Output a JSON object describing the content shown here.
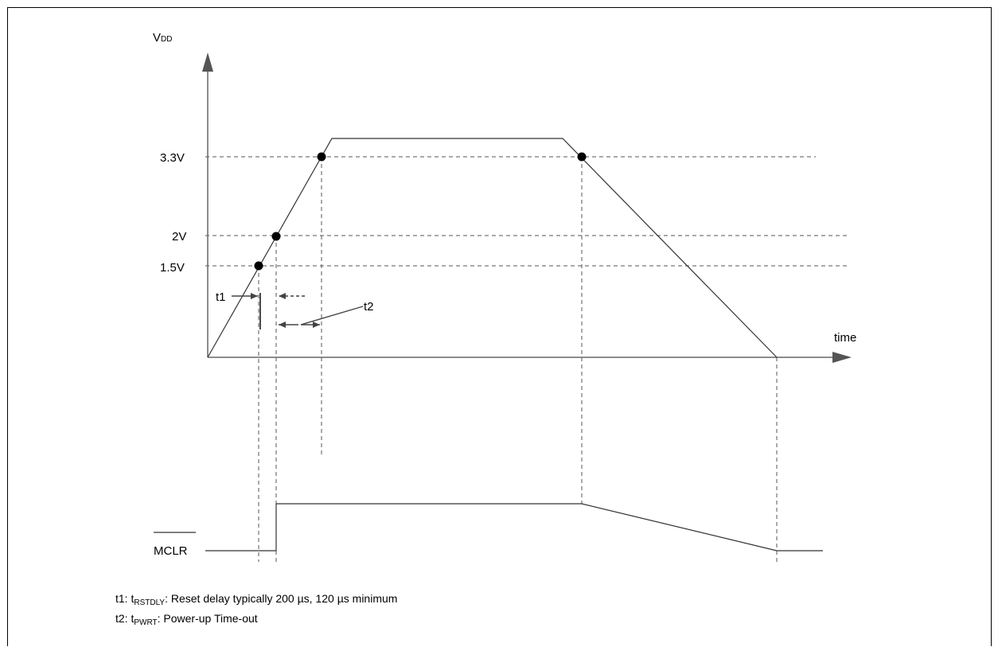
{
  "y_axis_label_main": "V",
  "y_axis_label_sub": "DD",
  "x_axis_label": "time",
  "levels": {
    "v33": "3.3V",
    "v2": "2V",
    "v15": "1.5V"
  },
  "markers": {
    "t1": "t1",
    "t2": "t2"
  },
  "signal_label": "MCLR",
  "notes": {
    "t1_prefix": "t1: t",
    "t1_sub": "RSTDLY",
    "t1_text": ": Reset delay typically 200 µs, 120 µs minimum",
    "t2_prefix": "t2: t",
    "t2_sub": "PWRT",
    "t2_text": ": Power-up Time-out"
  }
}
